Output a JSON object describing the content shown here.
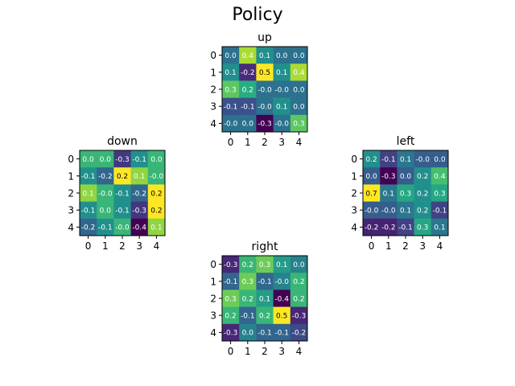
{
  "figure": {
    "title": "Policy"
  },
  "chart_data": [
    {
      "type": "heatmap",
      "title": "up",
      "x_ticks": [
        "0",
        "1",
        "2",
        "3",
        "4"
      ],
      "y_ticks": [
        "0",
        "1",
        "2",
        "3",
        "4"
      ],
      "values": [
        [
          0.0,
          0.4,
          0.1,
          0.0,
          0.0
        ],
        [
          0.1,
          -0.2,
          0.5,
          0.1,
          0.4
        ],
        [
          0.3,
          0.2,
          -0.0,
          -0.0,
          0.0
        ],
        [
          -0.1,
          -0.1,
          -0.0,
          0.1,
          0.0
        ],
        [
          -0.0,
          0.0,
          -0.3,
          -0.0,
          0.3
        ]
      ],
      "labels": [
        [
          "0.0",
          "0.4",
          "0.1",
          "0.0",
          "0.0"
        ],
        [
          "0.1",
          "-0.2",
          "0.5",
          "0.1",
          "0.4"
        ],
        [
          "0.3",
          "0.2",
          "-0.0",
          "-0.0",
          "0.0"
        ],
        [
          "-0.1",
          "-0.1",
          "-0.0",
          "0.1",
          "0.0"
        ],
        [
          "-0.0",
          "0.0",
          "-0.3",
          "-0.0",
          "0.3"
        ]
      ]
    },
    {
      "type": "heatmap",
      "title": "down",
      "x_ticks": [
        "0",
        "1",
        "2",
        "3",
        "4"
      ],
      "y_ticks": [
        "0",
        "1",
        "2",
        "3",
        "4"
      ],
      "values": [
        [
          0.0,
          0.0,
          -0.3,
          -0.1,
          0.0
        ],
        [
          -0.1,
          -0.2,
          0.2,
          0.1,
          -0.0
        ],
        [
          0.1,
          -0.0,
          -0.1,
          -0.2,
          0.2
        ],
        [
          -0.1,
          0.0,
          -0.1,
          -0.3,
          0.2
        ],
        [
          -0.2,
          -0.1,
          -0.0,
          -0.4,
          0.1
        ]
      ],
      "labels": [
        [
          "0.0",
          "0.0",
          "-0.3",
          "-0.1",
          "0.0"
        ],
        [
          "-0.1",
          "-0.2",
          "0.2",
          "0.1",
          "-0.0"
        ],
        [
          "0.1",
          "-0.0",
          "-0.1",
          "-0.2",
          "0.2"
        ],
        [
          "-0.1",
          "0.0",
          "-0.1",
          "-0.3",
          "0.2"
        ],
        [
          "-0.2",
          "-0.1",
          "-0.0",
          "-0.4",
          "0.1"
        ]
      ]
    },
    {
      "type": "heatmap",
      "title": "left",
      "x_ticks": [
        "0",
        "1",
        "2",
        "3",
        "4"
      ],
      "y_ticks": [
        "0",
        "1",
        "2",
        "3",
        "4"
      ],
      "values": [
        [
          0.2,
          -0.1,
          0.1,
          -0.0,
          0.0
        ],
        [
          0.0,
          -0.3,
          0.0,
          0.2,
          0.4
        ],
        [
          0.7,
          0.1,
          0.3,
          0.2,
          0.3
        ],
        [
          -0.0,
          -0.0,
          0.1,
          0.2,
          -0.1
        ],
        [
          -0.2,
          -0.2,
          -0.1,
          0.3,
          0.1
        ]
      ],
      "labels": [
        [
          "0.2",
          "-0.1",
          "0.1",
          "-0.0",
          "0.0"
        ],
        [
          "0.0",
          "-0.3",
          "0.0",
          "0.2",
          "0.4"
        ],
        [
          "0.7",
          "0.1",
          "0.3",
          "0.2",
          "0.3"
        ],
        [
          "-0.0",
          "-0.0",
          "0.1",
          "0.2",
          "-0.1"
        ],
        [
          "-0.2",
          "-0.2",
          "-0.1",
          "0.3",
          "0.1"
        ]
      ]
    },
    {
      "type": "heatmap",
      "title": "right",
      "x_ticks": [
        "0",
        "1",
        "2",
        "3",
        "4"
      ],
      "y_ticks": [
        "0",
        "1",
        "2",
        "3",
        "4"
      ],
      "values": [
        [
          -0.3,
          0.2,
          0.3,
          0.1,
          0.0
        ],
        [
          -0.1,
          0.3,
          -0.1,
          -0.0,
          0.2
        ],
        [
          0.3,
          0.2,
          0.1,
          -0.4,
          0.2
        ],
        [
          0.2,
          -0.1,
          0.2,
          0.5,
          -0.3
        ],
        [
          -0.3,
          0.0,
          -0.1,
          -0.1,
          -0.2
        ]
      ],
      "labels": [
        [
          "-0.3",
          "0.2",
          "0.3",
          "0.1",
          "0.0"
        ],
        [
          "-0.1",
          "0.3",
          "-0.1",
          "-0.0",
          "0.2"
        ],
        [
          "0.3",
          "0.2",
          "0.1",
          "-0.4",
          "0.2"
        ],
        [
          "0.2",
          "-0.1",
          "0.2",
          "0.5",
          "-0.3"
        ],
        [
          "-0.3",
          "0.0",
          "-0.1",
          "-0.1",
          "-0.2"
        ]
      ]
    }
  ]
}
